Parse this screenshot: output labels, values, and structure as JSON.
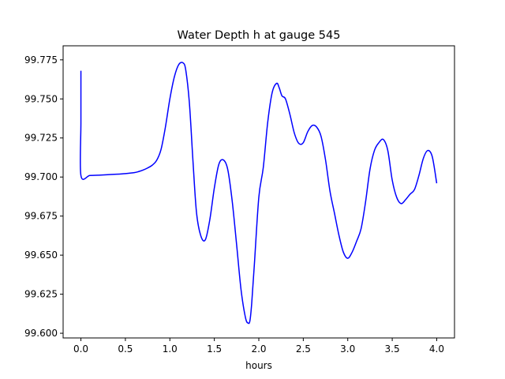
{
  "chart_data": {
    "type": "line",
    "title": "Water Depth h at gauge 545",
    "xlabel": "hours",
    "ylabel": "",
    "xlim": [
      -0.2,
      4.2
    ],
    "ylim": [
      99.597,
      99.784
    ],
    "xticks": [
      0.0,
      0.5,
      1.0,
      1.5,
      2.0,
      2.5,
      3.0,
      3.5,
      4.0
    ],
    "xtick_labels": [
      "0.0",
      "0.5",
      "1.0",
      "1.5",
      "2.0",
      "2.5",
      "3.0",
      "3.5",
      "4.0"
    ],
    "yticks": [
      99.6,
      99.625,
      99.65,
      99.675,
      99.7,
      99.725,
      99.75,
      99.775
    ],
    "ytick_labels": [
      "99.600",
      "99.625",
      "99.650",
      "99.675",
      "99.700",
      "99.725",
      "99.750",
      "99.775"
    ],
    "grid": false,
    "series": [
      {
        "color": "#0000ff",
        "x": [
          0.0,
          0.0,
          0.0,
          0.1,
          0.2,
          0.3,
          0.4,
          0.5,
          0.6,
          0.65,
          0.7,
          0.75,
          0.8,
          0.85,
          0.9,
          0.95,
          1.0,
          1.05,
          1.1,
          1.15,
          1.18,
          1.22,
          1.26,
          1.3,
          1.35,
          1.4,
          1.45,
          1.5,
          1.55,
          1.6,
          1.65,
          1.7,
          1.75,
          1.8,
          1.85,
          1.88,
          1.9,
          1.92,
          1.95,
          2.0,
          2.05,
          2.1,
          2.15,
          2.2,
          2.23,
          2.26,
          2.3,
          2.35,
          2.4,
          2.45,
          2.5,
          2.55,
          2.6,
          2.65,
          2.7,
          2.75,
          2.8,
          2.85,
          2.9,
          2.95,
          3.0,
          3.05,
          3.1,
          3.15,
          3.2,
          3.25,
          3.3,
          3.35,
          3.4,
          3.45,
          3.5,
          3.55,
          3.6,
          3.65,
          3.7,
          3.75,
          3.8,
          3.85,
          3.9,
          3.95,
          4.0
        ],
        "y": [
          99.768,
          99.735,
          99.701,
          99.701,
          99.7012,
          99.7015,
          99.7018,
          99.7022,
          99.7028,
          99.7035,
          99.7045,
          99.7058,
          99.7075,
          99.7105,
          99.7175,
          99.732,
          99.75,
          99.764,
          99.772,
          99.773,
          99.768,
          99.747,
          99.71,
          99.677,
          99.662,
          99.66,
          99.673,
          99.693,
          99.708,
          99.711,
          99.705,
          99.685,
          99.657,
          99.628,
          99.61,
          99.6065,
          99.608,
          99.619,
          99.644,
          99.687,
          99.706,
          99.735,
          99.754,
          99.76,
          99.757,
          99.752,
          99.75,
          99.74,
          99.728,
          99.7215,
          99.722,
          99.729,
          99.733,
          99.732,
          99.726,
          99.711,
          99.691,
          99.677,
          99.663,
          99.652,
          99.648,
          99.652,
          99.659,
          99.667,
          99.684,
          99.705,
          99.717,
          99.722,
          99.724,
          99.717,
          99.698,
          99.687,
          99.683,
          99.6855,
          99.689,
          99.692,
          99.701,
          99.712,
          99.717,
          99.713,
          99.696
        ]
      }
    ]
  }
}
